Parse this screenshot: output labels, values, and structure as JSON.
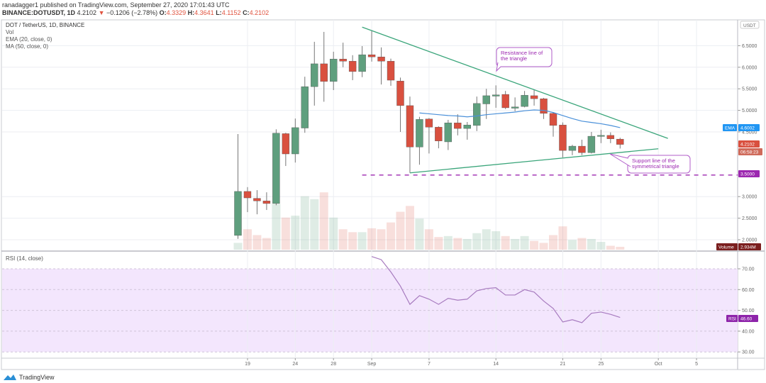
{
  "header": {
    "publish_line": "ranadagger1 published on TradingView.com, September 27, 2020 17:01:43 UTC",
    "symbol": "BINANCE:DOTUSDT, 1D",
    "last": "4.2102",
    "change_arrow": "▼",
    "change": "−0.1206 (−2.78%)",
    "o_label": "O:",
    "o": "4.3329",
    "h_label": "H:",
    "h": "4.3641",
    "l_label": "L:",
    "l": "4.1152",
    "c_label": "C:",
    "c": "4.2102"
  },
  "legend": {
    "title": "DOT / TetherUS, 1D, BINANCE",
    "vol": "Vol",
    "ema": "EMA (20, close, 0)",
    "ma": "MA (50, close, 0)",
    "rsi": "RSI (14, close)"
  },
  "footer": {
    "logo_text": "TradingView"
  },
  "colors": {
    "up": "#5f9f7e",
    "down": "#d9503f",
    "ema": "#4a90d9",
    "trendline": "#3aa57a",
    "support_dash": "#9c27b0",
    "rsi": "#a77bbf",
    "rsi_band": "#f3e6fd",
    "annotation": "#b05cc9"
  },
  "chart_data": [
    {
      "type": "candlestick",
      "title": "",
      "x_ticks": [
        {
          "date": "2020-08-19",
          "label": "19"
        },
        {
          "date": "2020-08-24",
          "label": "24"
        },
        {
          "date": "2020-08-28",
          "label": "28"
        },
        {
          "date": "2020-09-01",
          "label": "Sep"
        },
        {
          "date": "2020-09-07",
          "label": "7"
        },
        {
          "date": "2020-09-14",
          "label": "14"
        },
        {
          "date": "2020-09-21",
          "label": "21"
        },
        {
          "date": "2020-09-25",
          "label": "25"
        },
        {
          "date": "2020-10-01",
          "label": "Oct"
        },
        {
          "date": "2020-10-05",
          "label": "5"
        }
      ],
      "y_unit": "USDT",
      "y_ticks": [
        "6.5000",
        "6.0000",
        "5.5000",
        "5.0000",
        "4.5000",
        "3.0000",
        "2.5000",
        "2.0000"
      ],
      "ylim": [
        1.8,
        7.1
      ],
      "grid": true,
      "candles": [
        {
          "d": "2020-08-18",
          "o": 2.1,
          "h": 4.45,
          "l": 2.02,
          "c": 3.12,
          "v": 7
        },
        {
          "d": "2020-08-19",
          "o": 3.12,
          "h": 3.22,
          "l": 2.64,
          "c": 2.97,
          "v": 21
        },
        {
          "d": "2020-08-20",
          "o": 2.96,
          "h": 3.15,
          "l": 2.59,
          "c": 2.9,
          "v": 15
        },
        {
          "d": "2020-08-21",
          "o": 2.9,
          "h": 3.1,
          "l": 2.69,
          "c": 2.84,
          "v": 12
        },
        {
          "d": "2020-08-22",
          "o": 2.84,
          "h": 4.56,
          "l": 2.8,
          "c": 4.47,
          "v": 47
        },
        {
          "d": "2020-08-23",
          "o": 4.46,
          "h": 4.48,
          "l": 3.71,
          "c": 3.99,
          "v": 33
        },
        {
          "d": "2020-08-24",
          "o": 3.99,
          "h": 4.81,
          "l": 3.79,
          "c": 4.6,
          "v": 35
        },
        {
          "d": "2020-08-25",
          "o": 4.59,
          "h": 5.78,
          "l": 4.48,
          "c": 5.55,
          "v": 55
        },
        {
          "d": "2020-08-26",
          "o": 5.55,
          "h": 6.59,
          "l": 5.11,
          "c": 6.08,
          "v": 52
        },
        {
          "d": "2020-08-27",
          "o": 6.08,
          "h": 6.82,
          "l": 5.2,
          "c": 5.67,
          "v": 59
        },
        {
          "d": "2020-08-28",
          "o": 5.67,
          "h": 6.36,
          "l": 5.47,
          "c": 6.19,
          "v": 33
        },
        {
          "d": "2020-08-29",
          "o": 6.19,
          "h": 6.57,
          "l": 6.0,
          "c": 6.14,
          "v": 21
        },
        {
          "d": "2020-08-30",
          "o": 6.14,
          "h": 6.28,
          "l": 5.7,
          "c": 5.9,
          "v": 18
        },
        {
          "d": "2020-08-31",
          "o": 5.9,
          "h": 6.49,
          "l": 5.77,
          "c": 6.29,
          "v": 18
        },
        {
          "d": "2020-09-01",
          "o": 6.29,
          "h": 6.84,
          "l": 6.13,
          "c": 6.24,
          "v": 22
        },
        {
          "d": "2020-09-02",
          "o": 6.24,
          "h": 6.46,
          "l": 5.6,
          "c": 6.14,
          "v": 21
        },
        {
          "d": "2020-09-03",
          "o": 6.14,
          "h": 6.2,
          "l": 5.57,
          "c": 5.7,
          "v": 28
        },
        {
          "d": "2020-09-04",
          "o": 5.68,
          "h": 5.76,
          "l": 4.5,
          "c": 5.11,
          "v": 39
        },
        {
          "d": "2020-09-05",
          "o": 5.11,
          "h": 5.32,
          "l": 3.55,
          "c": 4.15,
          "v": 45
        },
        {
          "d": "2020-09-06",
          "o": 4.15,
          "h": 4.85,
          "l": 3.74,
          "c": 4.79,
          "v": 32
        },
        {
          "d": "2020-09-07",
          "o": 4.8,
          "h": 4.82,
          "l": 4.0,
          "c": 4.61,
          "v": 21
        },
        {
          "d": "2020-09-08",
          "o": 4.61,
          "h": 4.63,
          "l": 4.12,
          "c": 4.29,
          "v": 13
        },
        {
          "d": "2020-09-09",
          "o": 4.27,
          "h": 4.78,
          "l": 4.08,
          "c": 4.71,
          "v": 14
        },
        {
          "d": "2020-09-10",
          "o": 4.71,
          "h": 4.91,
          "l": 4.42,
          "c": 4.58,
          "v": 12
        },
        {
          "d": "2020-09-11",
          "o": 4.58,
          "h": 4.73,
          "l": 4.32,
          "c": 4.66,
          "v": 11
        },
        {
          "d": "2020-09-12",
          "o": 4.65,
          "h": 5.32,
          "l": 4.52,
          "c": 5.16,
          "v": 17
        },
        {
          "d": "2020-09-13",
          "o": 5.15,
          "h": 5.5,
          "l": 4.8,
          "c": 5.34,
          "v": 21
        },
        {
          "d": "2020-09-14",
          "o": 5.33,
          "h": 5.58,
          "l": 5.06,
          "c": 5.36,
          "v": 19
        },
        {
          "d": "2020-09-15",
          "o": 5.37,
          "h": 5.45,
          "l": 5.03,
          "c": 5.06,
          "v": 14
        },
        {
          "d": "2020-09-16",
          "o": 5.05,
          "h": 5.3,
          "l": 4.98,
          "c": 5.08,
          "v": 11
        },
        {
          "d": "2020-09-17",
          "o": 5.09,
          "h": 5.45,
          "l": 5.07,
          "c": 5.35,
          "v": 14
        },
        {
          "d": "2020-09-18",
          "o": 5.34,
          "h": 5.47,
          "l": 5.11,
          "c": 5.27,
          "v": 9
        },
        {
          "d": "2020-09-19",
          "o": 5.27,
          "h": 5.29,
          "l": 4.8,
          "c": 4.93,
          "v": 7
        },
        {
          "d": "2020-09-20",
          "o": 4.93,
          "h": 4.95,
          "l": 4.39,
          "c": 4.65,
          "v": 15
        },
        {
          "d": "2020-09-21",
          "o": 4.66,
          "h": 4.72,
          "l": 3.91,
          "c": 4.07,
          "v": 24
        },
        {
          "d": "2020-09-22",
          "o": 4.07,
          "h": 4.2,
          "l": 3.96,
          "c": 4.17,
          "v": 10
        },
        {
          "d": "2020-09-23",
          "o": 4.17,
          "h": 4.32,
          "l": 3.96,
          "c": 4.02,
          "v": 12
        },
        {
          "d": "2020-09-24",
          "o": 4.02,
          "h": 4.5,
          "l": 4.0,
          "c": 4.4,
          "v": 11
        },
        {
          "d": "2020-09-25",
          "o": 4.4,
          "h": 4.55,
          "l": 4.24,
          "c": 4.42,
          "v": 8
        },
        {
          "d": "2020-09-26",
          "o": 4.42,
          "h": 4.49,
          "l": 4.24,
          "c": 4.34,
          "v": 4
        },
        {
          "d": "2020-09-27",
          "o": 4.3329,
          "h": 4.3641,
          "l": 4.1152,
          "c": 4.2102,
          "v": 2.934
        }
      ],
      "volume_unit": "M",
      "ema": {
        "name": "EMA",
        "start": "2020-09-06",
        "values": [
          4.94,
          4.92,
          4.9,
          4.88,
          4.87,
          4.85,
          4.87,
          4.9,
          4.92,
          4.94,
          4.96,
          4.99,
          5.01,
          5.0,
          4.95,
          4.88,
          4.81,
          4.75,
          4.72,
          4.69,
          4.65,
          4.6
        ]
      },
      "trendlines": [
        {
          "name": "resistance",
          "from": {
            "d": "2020-08-31",
            "p": 6.93
          },
          "to": {
            "d": "2020-10-02",
            "p": 4.35
          }
        },
        {
          "name": "support",
          "from": {
            "d": "2020-09-05",
            "p": 3.55
          },
          "to": {
            "d": "2020-10-01",
            "p": 4.11
          }
        }
      ],
      "horizontal_level": {
        "from": "2020-08-31",
        "p": 3.5
      },
      "annotations": [
        {
          "text": "Resistance line of the triangle"
        },
        {
          "text": "Support line of the symmetrical triangle"
        }
      ],
      "axis_labels": {
        "ema": {
          "tag": "EMA",
          "value": "4.6002"
        },
        "price": {
          "value": "4.2102",
          "countdown": "06:58:23"
        },
        "level": {
          "value": "3.5000"
        },
        "volume": {
          "tag": "Volume",
          "value": "2.934M"
        }
      }
    },
    {
      "type": "line",
      "title": "RSI (14, close)",
      "y_ticks": [
        "70.00",
        "60.00",
        "50.00",
        "40.00",
        "30.00"
      ],
      "band": [
        30,
        70
      ],
      "start": "2020-09-01",
      "values": [
        75.9,
        74.4,
        68.5,
        61.7,
        52.9,
        57.1,
        55.4,
        52.9,
        55.8,
        54.9,
        55.4,
        59.4,
        60.5,
        60.9,
        57.4,
        57.4,
        60.0,
        58.8,
        54.5,
        50.9,
        44.4,
        45.5,
        44.1,
        48.6,
        49.2,
        48.1,
        46.6
      ],
      "axis_label": {
        "tag": "RSI",
        "value": "46.60"
      }
    }
  ]
}
